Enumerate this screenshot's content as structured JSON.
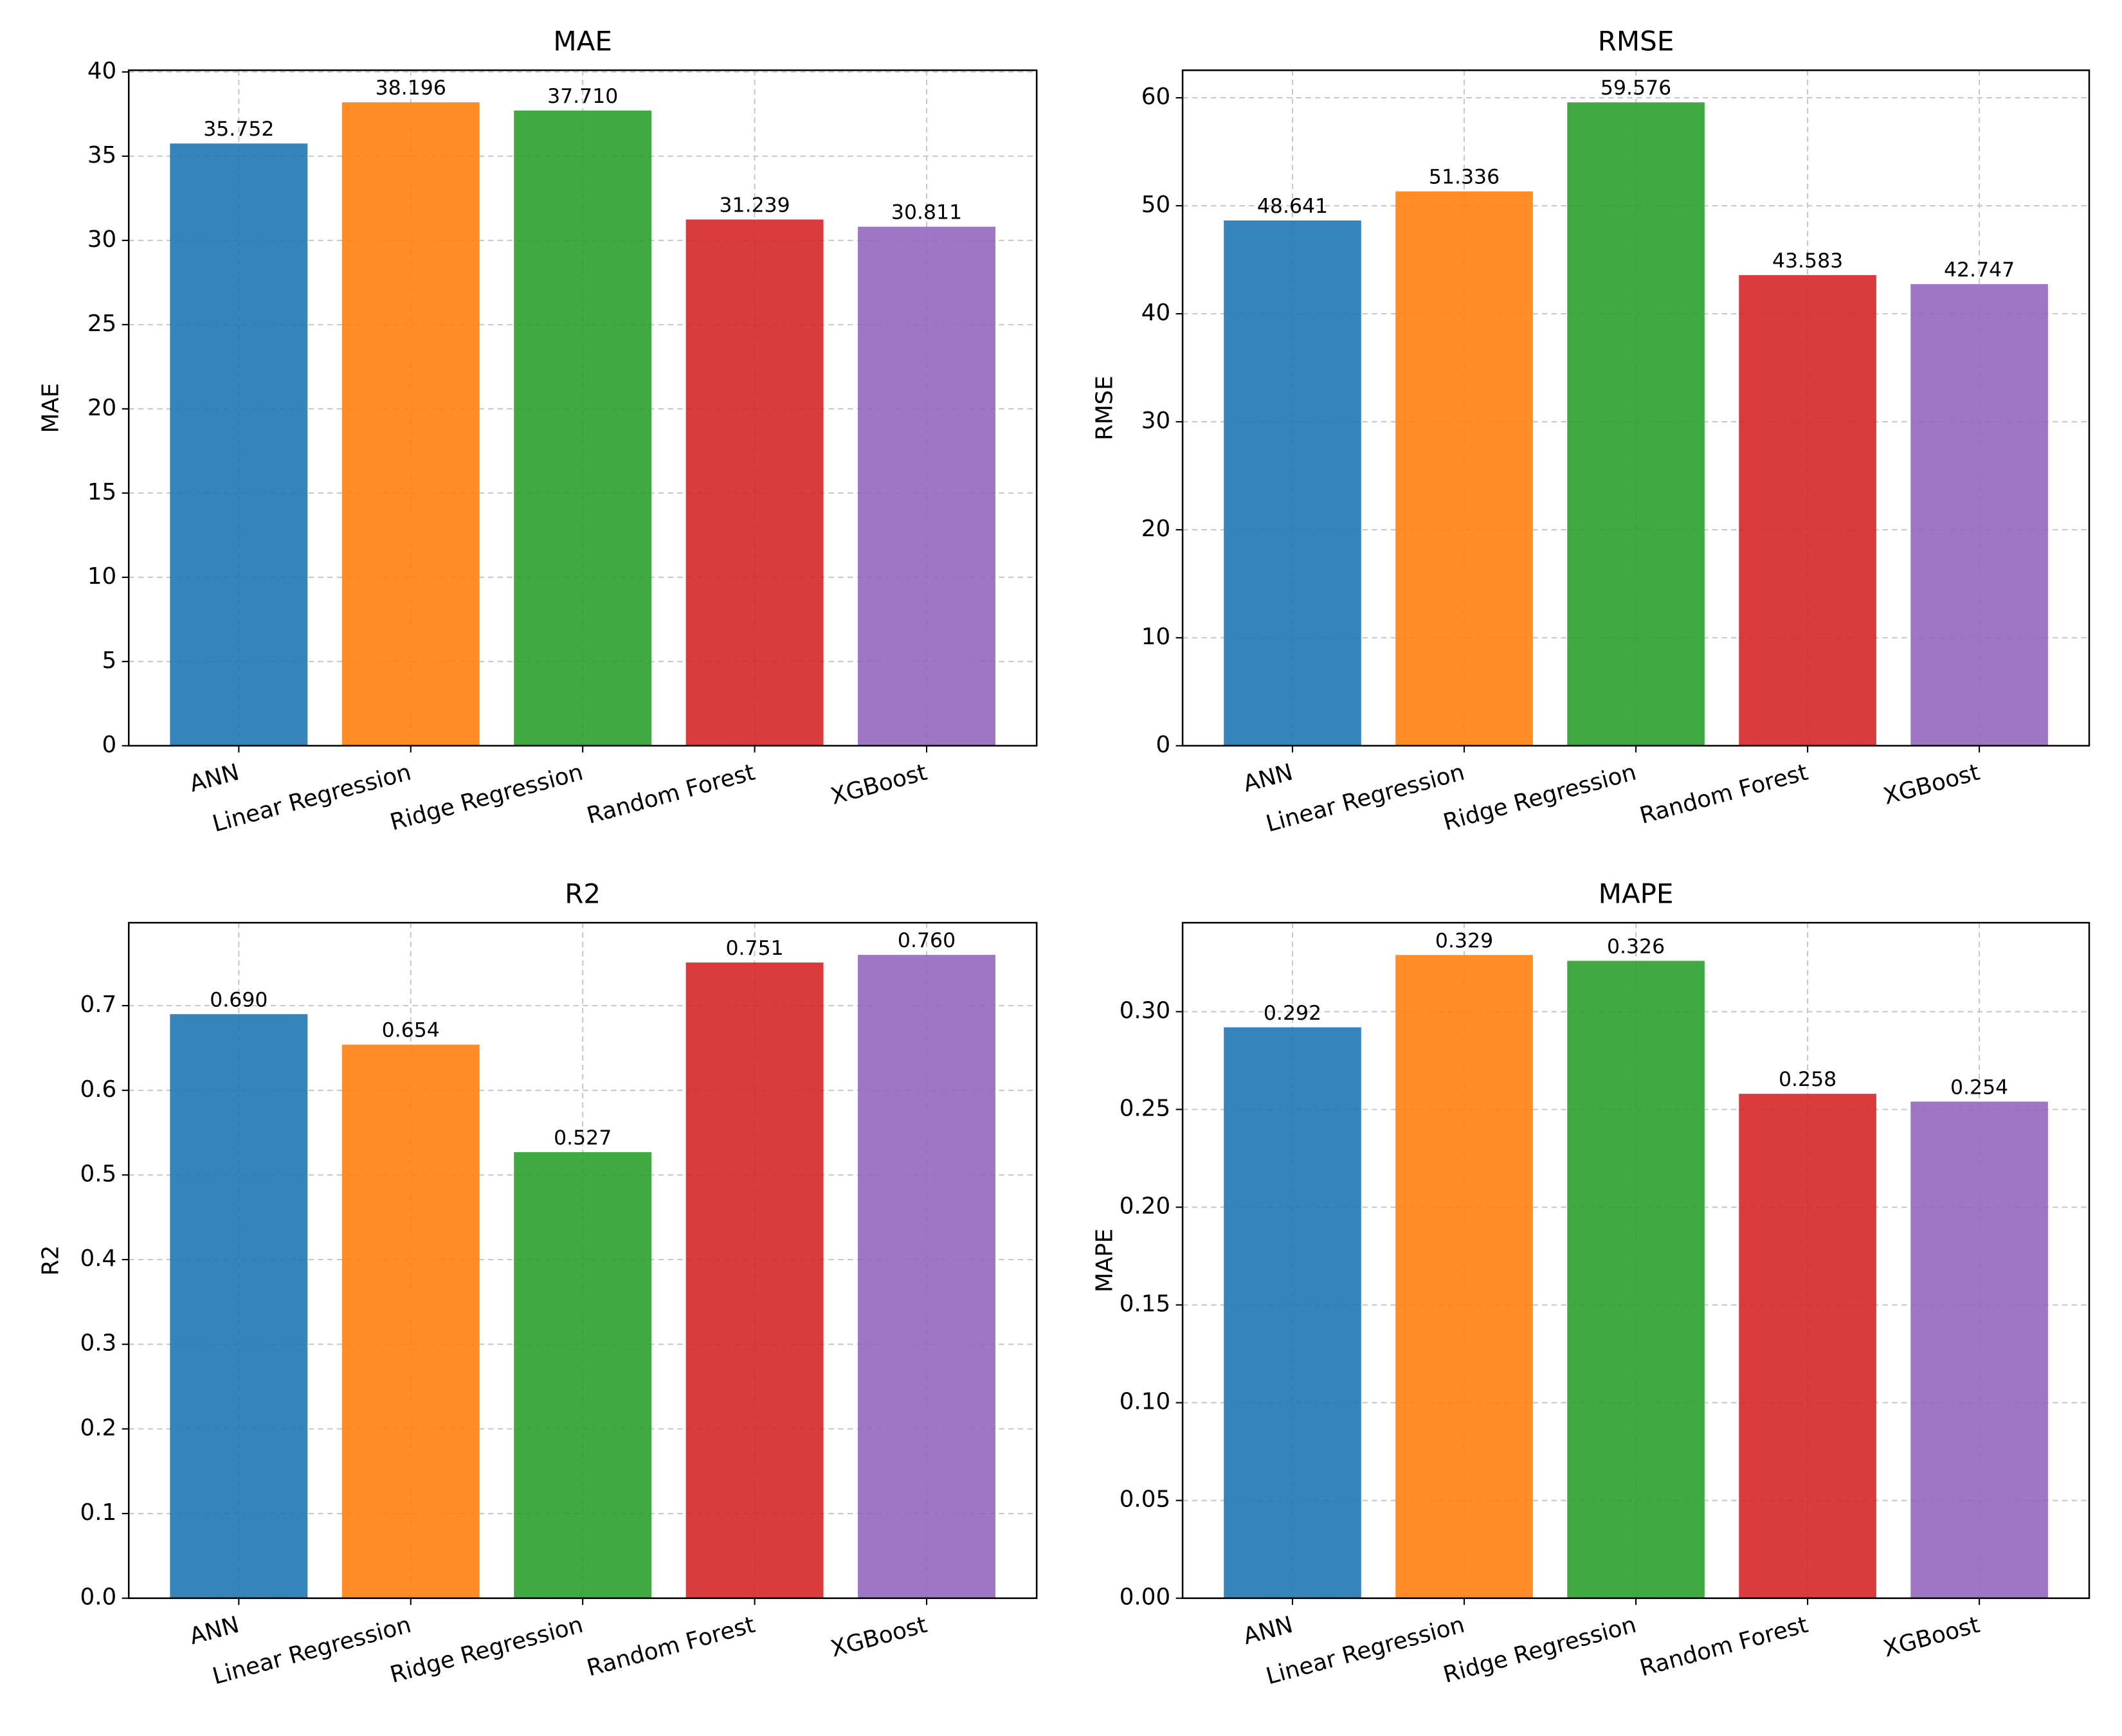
{
  "chart_data": [
    {
      "type": "bar",
      "title": "MAE",
      "ylabel": "MAE",
      "categories": [
        "ANN",
        "Linear Regression",
        "Ridge Regression",
        "Random Forest",
        "XGBoost"
      ],
      "values": [
        35.752,
        38.196,
        37.71,
        31.239,
        30.811
      ],
      "value_labels": [
        "35.752",
        "38.196",
        "37.710",
        "31.239",
        "30.811"
      ],
      "colors": [
        "#1f77b4",
        "#ff7f0e",
        "#2ca02c",
        "#d62728",
        "#9467bd"
      ],
      "ylim": [
        0,
        40.1
      ],
      "yticks": [
        0,
        5,
        10,
        15,
        20,
        25,
        30,
        35,
        40
      ],
      "grid": true
    },
    {
      "type": "bar",
      "title": "RMSE",
      "ylabel": "RMSE",
      "categories": [
        "ANN",
        "Linear Regression",
        "Ridge Regression",
        "Random Forest",
        "XGBoost"
      ],
      "values": [
        48.641,
        51.336,
        59.576,
        43.583,
        42.747
      ],
      "value_labels": [
        "48.641",
        "51.336",
        "59.576",
        "43.583",
        "42.747"
      ],
      "colors": [
        "#1f77b4",
        "#ff7f0e",
        "#2ca02c",
        "#d62728",
        "#9467bd"
      ],
      "ylim": [
        0,
        62.55
      ],
      "yticks": [
        0,
        10,
        20,
        30,
        40,
        50,
        60
      ],
      "grid": true
    },
    {
      "type": "bar",
      "title": "R2",
      "ylabel": "R2",
      "categories": [
        "ANN",
        "Linear Regression",
        "Ridge Regression",
        "Random Forest",
        "XGBoost"
      ],
      "values": [
        0.69,
        0.654,
        0.527,
        0.751,
        0.76
      ],
      "value_labels": [
        "0.690",
        "0.654",
        "0.527",
        "0.751",
        "0.760"
      ],
      "colors": [
        "#1f77b4",
        "#ff7f0e",
        "#2ca02c",
        "#d62728",
        "#9467bd"
      ],
      "ylim": [
        0,
        0.798
      ],
      "yticks": [
        {
          "value": 0,
          "label": "0.0"
        },
        0.1,
        0.2,
        0.3,
        0.4,
        0.5,
        0.6,
        0.7
      ],
      "grid": true
    },
    {
      "type": "bar",
      "title": "MAPE",
      "ylabel": "MAPE",
      "categories": [
        "ANN",
        "Linear Regression",
        "Ridge Regression",
        "Random Forest",
        "XGBoost"
      ],
      "values": [
        0.292,
        0.329,
        0.326,
        0.258,
        0.254
      ],
      "value_labels": [
        "0.292",
        "0.329",
        "0.326",
        "0.258",
        "0.254"
      ],
      "colors": [
        "#1f77b4",
        "#ff7f0e",
        "#2ca02c",
        "#d62728",
        "#9467bd"
      ],
      "ylim": [
        0,
        0.3455
      ],
      "yticks": [
        {
          "value": 0,
          "label": "0.00"
        },
        0.05,
        {
          "value": 0.1,
          "label": "0.10"
        },
        0.15,
        {
          "value": 0.2,
          "label": "0.20"
        },
        0.25,
        {
          "value": 0.3,
          "label": "0.30"
        }
      ],
      "grid": true
    }
  ]
}
